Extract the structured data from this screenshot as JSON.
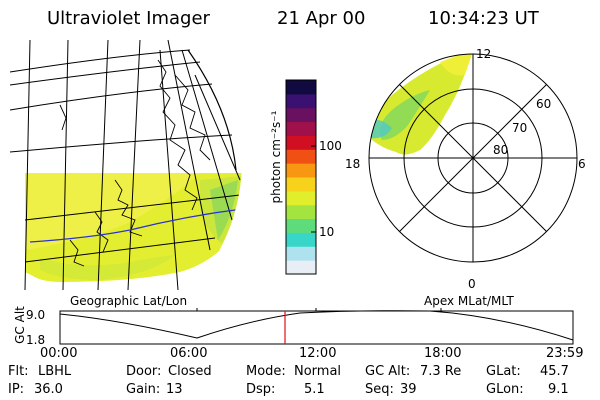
{
  "header": {
    "instrument": "Ultraviolet Imager",
    "date": "21 Apr 00",
    "time": "10:34:23 UT"
  },
  "colorbar": {
    "unit_label": "photon cm⁻²s⁻¹",
    "ticks": [
      "100",
      "10"
    ],
    "colors": [
      "#e8eef6",
      "#aee2ee",
      "#38d6c8",
      "#5edc7c",
      "#a4e440",
      "#e0ee2c",
      "#f6d21a",
      "#f89812",
      "#f05014",
      "#d01022",
      "#a0104a",
      "#6a1060",
      "#3a1070",
      "#100a40"
    ]
  },
  "polar_plot": {
    "mlt_labels": {
      "top": "12",
      "left": "18",
      "right": "6",
      "bottom": "0"
    },
    "lat_rings": [
      "60",
      "70",
      "80"
    ]
  },
  "panel_labels": {
    "left": "Geographic Lat/Lon",
    "right": "Apex MLat/MLT"
  },
  "timeline": {
    "axis_label": "GC Alt",
    "y_ticks": [
      "9.0",
      "1.8"
    ],
    "x_ticks": [
      "00:00",
      "06:00",
      "12:00",
      "18:00",
      "23:59"
    ],
    "marker_color": "#e01010"
  },
  "footer": {
    "row1": [
      {
        "label": "Flt:",
        "value": "LBHL"
      },
      {
        "label": "Door:",
        "value": "Closed"
      },
      {
        "label": "Mode:",
        "value": "Normal"
      },
      {
        "label": "GC Alt:",
        "value": "7.3 Re"
      },
      {
        "label": "GLat:",
        "value": "45.7"
      }
    ],
    "row2": [
      {
        "label": "IP:",
        "value": "36.0"
      },
      {
        "label": "Gain:",
        "value": "13"
      },
      {
        "label": "Dsp:",
        "value": "5.1"
      },
      {
        "label": "Seq:",
        "value": "39"
      },
      {
        "label": "GLon:",
        "value": "9.1"
      }
    ]
  }
}
